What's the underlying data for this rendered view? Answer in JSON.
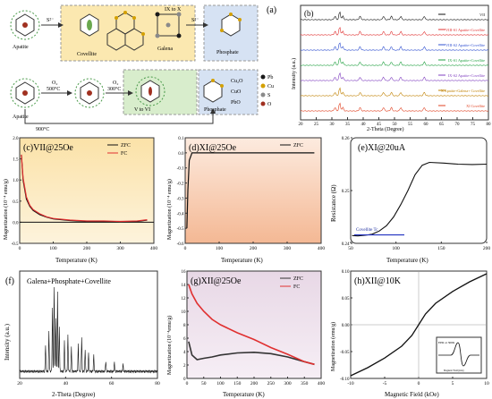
{
  "scheme": {
    "panel_label": "(a)",
    "row1": {
      "start": "Apatite",
      "arrow1": "S²⁻",
      "mid1": "Covellite",
      "mid2": "Galena",
      "bracket": "IX to X",
      "arrow2": "S²⁻",
      "end": "Phosphate"
    },
    "row2": {
      "start": "Apatite",
      "o2a": "O₂",
      "t1": "500°C",
      "o2b": "O₂",
      "t2": "300°C",
      "mid": "V to VI",
      "end": "Phosphate",
      "oxides": [
        "Cu₂O",
        "CuO",
        "PbO"
      ],
      "bottom": "900°C"
    },
    "legend": [
      {
        "label": "Pb",
        "color": "#1a1a1a"
      },
      {
        "label": "Cu",
        "color": "#d4a000"
      },
      {
        "label": "S",
        "color": "#8a8a8a"
      },
      {
        "label": "O",
        "color": "#a03020"
      }
    ],
    "colors": {
      "yellow_box": "#fbe8b0",
      "blue_box": "#d6e2f3",
      "green_box": "#d8edcc"
    }
  },
  "xrd": {
    "panel_label": "(b)",
    "xlabel": "2-Theta (Degree)",
    "ylabel": "Intensity (a.u.)",
    "ticks": [
      "20",
      "25",
      "30",
      "35",
      "40",
      "45",
      "50",
      "55",
      "60",
      "65",
      "70",
      "75",
      "80"
    ],
    "traces": [
      {
        "label": "VII",
        "color": "#111111"
      },
      {
        "label": "VIII-S1 Apatite+Covellite",
        "color": "#e03030"
      },
      {
        "label": "VIII-S2 Apatite+Covellite",
        "color": "#3050d0"
      },
      {
        "label": "IX-S1 Apatite+Covellite",
        "color": "#20a040"
      },
      {
        "label": "IX-S2 Apatite+Covellite",
        "color": "#8040c0"
      },
      {
        "label": "X Apatite+Galena+ Covellite",
        "color": "#c08000"
      },
      {
        "label": "XI Covellite",
        "color": "#e04020"
      }
    ]
  },
  "c": {
    "label": "(c)VII@25Oe",
    "ylabel": "Magnetization (10⁻⁴ emu/g)",
    "xlabel": "Temperature (K)",
    "xticks": [
      "0",
      "100",
      "200",
      "300",
      "400"
    ],
    "yticks": [
      "-0.5",
      "0.0",
      "0.5",
      "1.0",
      "1.5",
      "2.0"
    ],
    "legend": [
      "ZFC",
      "FC"
    ]
  },
  "d": {
    "label": "(d)XI@25Oe",
    "ylabel": "Magnetization (10⁻⁴ emu/g)",
    "xlabel": "Temperature (K)",
    "xticks": [
      "0",
      "100",
      "200",
      "300",
      "400"
    ],
    "yticks": [
      "-0.6",
      "-0.5",
      "-0.4",
      "-0.3",
      "-0.2",
      "-0.1",
      "0.0",
      "0.1"
    ],
    "legend": [
      "ZFC"
    ]
  },
  "e": {
    "label": "(e)XI@20uA",
    "ylabel": "Resistance (Ω)",
    "xlabel": "Temperature (K)",
    "xticks": [
      "50",
      "100",
      "150",
      "200"
    ],
    "yticks": [
      "0.24",
      "0.25",
      "0.26"
    ],
    "annotation": "Covellite Tc"
  },
  "f": {
    "label": "(f)",
    "title": "Galena+Phosphate+Covellite",
    "ylabel": "Intensity (a.u.)",
    "xlabel": "2-Theta (Degree)",
    "xticks": [
      "20",
      "40",
      "60",
      "80"
    ]
  },
  "g": {
    "label": "(g)XII@25Oe",
    "ylabel": "Magnetization (10⁻⁴emu/g)",
    "xlabel": "Temperature (K)",
    "xticks": [
      "0",
      "50",
      "100",
      "150",
      "200",
      "250",
      "300",
      "350",
      "400"
    ],
    "yticks": [
      "0",
      "2",
      "4",
      "6",
      "8",
      "10",
      "12",
      "14",
      "16"
    ],
    "legend": [
      "ZFC",
      "FC"
    ]
  },
  "h": {
    "label": "(h)XII@10K",
    "ylabel": "Magnetization (emu/g)",
    "xlabel": "Magnetic Field (kOe)",
    "xticks": [
      "-10",
      "-5",
      "0",
      "5",
      "10"
    ],
    "yticks": [
      "-0.10",
      "-0.05",
      "0.00",
      "0.05",
      "0.10"
    ],
    "inset": "EPR at 300K",
    "inset_xlabel": "Magnetic Field (kOe)"
  },
  "chart_data": [
    {
      "type": "line",
      "title": "(c)VII@25Oe",
      "xlabel": "Temperature (K)",
      "ylabel": "Magnetization (10⁻⁴ emu/g)",
      "xlim": [
        0,
        400
      ],
      "ylim": [
        -0.5,
        2.0
      ],
      "series": [
        {
          "name": "ZFC",
          "x": [
            5,
            10,
            20,
            30,
            40,
            60,
            80,
            100,
            150,
            200,
            250,
            300,
            350,
            380
          ],
          "y": [
            1.6,
            1.0,
            0.55,
            0.38,
            0.28,
            0.18,
            0.12,
            0.08,
            0.04,
            0.02,
            0.02,
            0.01,
            0.02,
            0.05
          ]
        },
        {
          "name": "FC",
          "x": [
            5,
            10,
            20,
            30,
            40,
            60,
            80,
            100,
            150,
            200,
            250,
            300,
            350,
            380
          ],
          "y": [
            1.6,
            1.05,
            0.6,
            0.4,
            0.3,
            0.2,
            0.13,
            0.09,
            0.05,
            0.03,
            0.03,
            0.02,
            0.03,
            0.06
          ]
        }
      ]
    },
    {
      "type": "line",
      "title": "(d)XI@25Oe",
      "xlabel": "Temperature (K)",
      "ylabel": "Magnetization (10⁻⁴ emu/g)",
      "xlim": [
        0,
        400
      ],
      "ylim": [
        -0.6,
        0.1
      ],
      "series": [
        {
          "name": "ZFC",
          "x": [
            5,
            8,
            12,
            20,
            40,
            100,
            200,
            300,
            380
          ],
          "y": [
            -0.5,
            -0.25,
            -0.05,
            0.0,
            0.0,
            0.0,
            0.0,
            0.0,
            0.0
          ]
        }
      ]
    },
    {
      "type": "line",
      "title": "(e)XI@20uA",
      "xlabel": "Temperature (K)",
      "ylabel": "Resistance (Ω)",
      "xlim": [
        10,
        200
      ],
      "ylim": [
        0.236,
        0.266
      ],
      "series": [
        {
          "name": "",
          "x": [
            12,
            20,
            30,
            40,
            50,
            60,
            70,
            80,
            90,
            100,
            110,
            120,
            140,
            160,
            180,
            200
          ],
          "y": [
            0.2382,
            0.2381,
            0.2383,
            0.2386,
            0.2395,
            0.241,
            0.2435,
            0.247,
            0.251,
            0.2555,
            0.2582,
            0.259,
            0.2588,
            0.2585,
            0.2584,
            0.2585
          ]
        }
      ]
    },
    {
      "type": "line",
      "title": "(g)XII@25Oe",
      "xlabel": "Temperature (K)",
      "ylabel": "Magnetization (10⁻⁴emu/g)",
      "xlim": [
        0,
        400
      ],
      "ylim": [
        0,
        16
      ],
      "series": [
        {
          "name": "ZFC",
          "x": [
            5,
            15,
            30,
            50,
            75,
            100,
            150,
            200,
            250,
            300,
            350,
            380
          ],
          "y": [
            5.5,
            3.5,
            2.8,
            3.0,
            3.2,
            3.5,
            3.8,
            3.9,
            3.7,
            3.2,
            2.5,
            2.1
          ]
        },
        {
          "name": "FC",
          "x": [
            5,
            15,
            30,
            50,
            75,
            100,
            150,
            200,
            250,
            300,
            350,
            380
          ],
          "y": [
            14.0,
            12.6,
            11.2,
            10.0,
            8.8,
            8.0,
            6.8,
            5.8,
            4.6,
            3.6,
            2.5,
            2.1
          ]
        }
      ]
    },
    {
      "type": "line",
      "title": "(h)XII@10K",
      "xlabel": "Magnetic Field (kOe)",
      "ylabel": "Magnetization (emu/g)",
      "xlim": [
        -10,
        10
      ],
      "ylim": [
        -0.1,
        0.1
      ],
      "series": [
        {
          "name": "",
          "x": [
            -10,
            -7.5,
            -5,
            -2.5,
            -1,
            0,
            1,
            2.5,
            5,
            7.5,
            10
          ],
          "y": [
            -0.095,
            -0.08,
            -0.062,
            -0.04,
            -0.02,
            0.0,
            0.02,
            0.04,
            0.062,
            0.08,
            0.095
          ]
        }
      ]
    }
  ]
}
